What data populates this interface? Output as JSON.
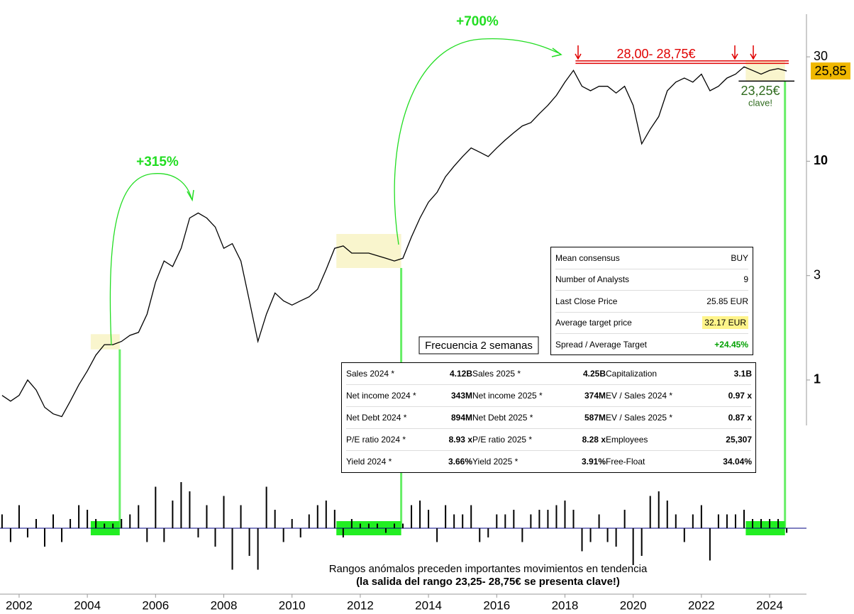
{
  "chart_data": {
    "type": "line",
    "color": "#000000",
    "log_y": true,
    "x": [
      2001.5,
      2001.75,
      2002,
      2002.25,
      2002.5,
      2002.75,
      2003,
      2003.25,
      2003.5,
      2003.75,
      2004,
      2004.25,
      2004.5,
      2004.75,
      2005,
      2005.25,
      2005.5,
      2005.75,
      2006,
      2006.25,
      2006.5,
      2006.75,
      2007,
      2007.25,
      2007.5,
      2007.75,
      2008,
      2008.25,
      2008.5,
      2008.75,
      2009,
      2009.25,
      2009.5,
      2009.75,
      2010,
      2010.25,
      2010.5,
      2010.75,
      2011,
      2011.25,
      2011.5,
      2011.75,
      2012,
      2012.25,
      2012.5,
      2012.75,
      2013,
      2013.25,
      2013.5,
      2013.75,
      2014,
      2014.25,
      2014.5,
      2014.75,
      2015,
      2015.25,
      2015.5,
      2015.75,
      2016,
      2016.25,
      2016.5,
      2016.75,
      2017,
      2017.25,
      2017.5,
      2017.75,
      2018,
      2018.25,
      2018.5,
      2018.75,
      2019,
      2019.25,
      2019.5,
      2019.75,
      2020,
      2020.25,
      2020.5,
      2020.75,
      2021,
      2021.25,
      2021.5,
      2021.75,
      2022,
      2022.25,
      2022.5,
      2022.75,
      2023,
      2023.25,
      2023.5,
      2023.75,
      2024,
      2024.25,
      2024.5
    ],
    "values": [
      0.85,
      0.8,
      0.85,
      1.0,
      0.9,
      0.75,
      0.7,
      0.68,
      0.8,
      0.95,
      1.1,
      1.3,
      1.45,
      1.45,
      1.5,
      1.6,
      1.65,
      2.0,
      2.8,
      3.5,
      3.3,
      4.0,
      5.5,
      5.8,
      5.5,
      5.0,
      4.0,
      4.2,
      3.5,
      2.3,
      1.5,
      2.0,
      2.5,
      2.3,
      2.2,
      2.3,
      2.4,
      2.6,
      3.2,
      4.0,
      4.1,
      3.8,
      3.8,
      3.8,
      3.7,
      3.6,
      3.5,
      3.6,
      4.5,
      5.5,
      6.5,
      7.2,
      8.5,
      9.5,
      10.5,
      11.5,
      11.0,
      10.5,
      11.5,
      12.5,
      13.5,
      14.5,
      15.0,
      16.5,
      18.0,
      20.0,
      23.0,
      26.0,
      22.0,
      21.0,
      22.0,
      22.0,
      20.5,
      22.0,
      18.0,
      12.0,
      14.0,
      16.0,
      21.0,
      23.0,
      24.0,
      23.0,
      25.0,
      21.0,
      22.0,
      24.0,
      25.0,
      27.0,
      26.0,
      25.0,
      26.0,
      26.5,
      25.85
    ],
    "xlim": [
      2001.44,
      2025.08
    ],
    "xticks": [
      2002,
      2004,
      2006,
      2008,
      2010,
      2012,
      2014,
      2016,
      2018,
      2020,
      2022,
      2024
    ],
    "ylim": [
      0.62,
      47
    ],
    "yticks": [
      1,
      3,
      10,
      30
    ],
    "indicator": {
      "color": "#000080",
      "ylim": [
        -1,
        1
      ],
      "values": [
        0.3,
        -0.3,
        0.5,
        -0.2,
        0.2,
        -0.4,
        0.3,
        -0.3,
        0.2,
        0.5,
        0.4,
        0.2,
        0.1,
        0.1,
        0.2,
        0.3,
        0.5,
        -0.3,
        0.9,
        -0.3,
        0.6,
        1.0,
        0.8,
        -0.2,
        0.5,
        -0.4,
        0.7,
        -0.9,
        0.5,
        -0.6,
        -0.9,
        0.9,
        0.4,
        -0.3,
        0.2,
        -0.2,
        0.3,
        0.5,
        0.6,
        0.4,
        -0.2,
        0.2,
        0.1,
        0.1,
        0.1,
        -0.1,
        0.1,
        0.1,
        0.5,
        0.6,
        0.4,
        -0.3,
        0.5,
        0.3,
        0.3,
        0.5,
        -0.3,
        -0.2,
        0.3,
        0.3,
        0.4,
        -0.3,
        0.3,
        0.4,
        0.4,
        0.5,
        0.6,
        0.4,
        -0.5,
        -0.3,
        0.3,
        -0.3,
        -0.4,
        0.4,
        -0.8,
        -0.6,
        0.7,
        0.8,
        0.6,
        0.3,
        -0.3,
        0.3,
        0.5,
        -0.7,
        0.3,
        0.3,
        0.3,
        0.4,
        0.2,
        0.2,
        0.2,
        0.2,
        -0.1
      ]
    },
    "ranges": [
      {
        "x": [
          2004.1,
          2004.95
        ],
        "y": [
          1.38,
          1.62
        ]
      },
      {
        "x": [
          2011.3,
          2013.2
        ],
        "y": [
          3.25,
          4.65
        ]
      },
      {
        "x": [
          2023.3,
          2024.45
        ],
        "y": [
          23.25,
          28.75
        ]
      }
    ],
    "resistance": [
      28.0,
      28.75
    ],
    "support": 23.25,
    "last_price": {
      "value": 25.85,
      "label": "25,85"
    },
    "annotations": {
      "gain_1": "+315%",
      "gain_2": "+700%",
      "resistance_label": "28,00- 28,75€",
      "support_label": "23,25€",
      "key": "clave!",
      "frequency": "Frecuencia 2 semanas",
      "caption_1": "Rangos anómalos preceden importantes movimientos en tendencia",
      "caption_2": "(la salida del rango 23,25- 28,75€ se presenta clave!)"
    }
  },
  "consensus": {
    "rows": [
      [
        "Mean consensus",
        "BUY"
      ],
      [
        "Number of Analysts",
        "9"
      ],
      [
        "Last Close Price",
        "25.85 EUR"
      ],
      [
        "Average target price",
        "32.17 EUR"
      ],
      [
        "Spread / Average Target",
        "+24.45%"
      ]
    ]
  },
  "fundamentals": {
    "rows": [
      [
        "Sales 2024 *",
        "4.12B",
        "Sales 2025 *",
        "4.25B",
        "Capitalization",
        "3.1B"
      ],
      [
        "Net income 2024 *",
        "343M",
        "Net income 2025 *",
        "374M",
        "EV / Sales 2024 *",
        "0.97 x"
      ],
      [
        "Net Debt 2024 *",
        "894M",
        "Net Debt 2025 *",
        "587M",
        "EV / Sales 2025 *",
        "0.87 x"
      ],
      [
        "P/E ratio 2024 *",
        "8.93 x",
        "P/E ratio 2025 *",
        "8.28 x",
        "Employees",
        "25,307"
      ],
      [
        "Yield 2024 *",
        "3.66%",
        "Yield 2025 *",
        "3.91%",
        "Free-Float",
        "34.04%"
      ]
    ]
  }
}
